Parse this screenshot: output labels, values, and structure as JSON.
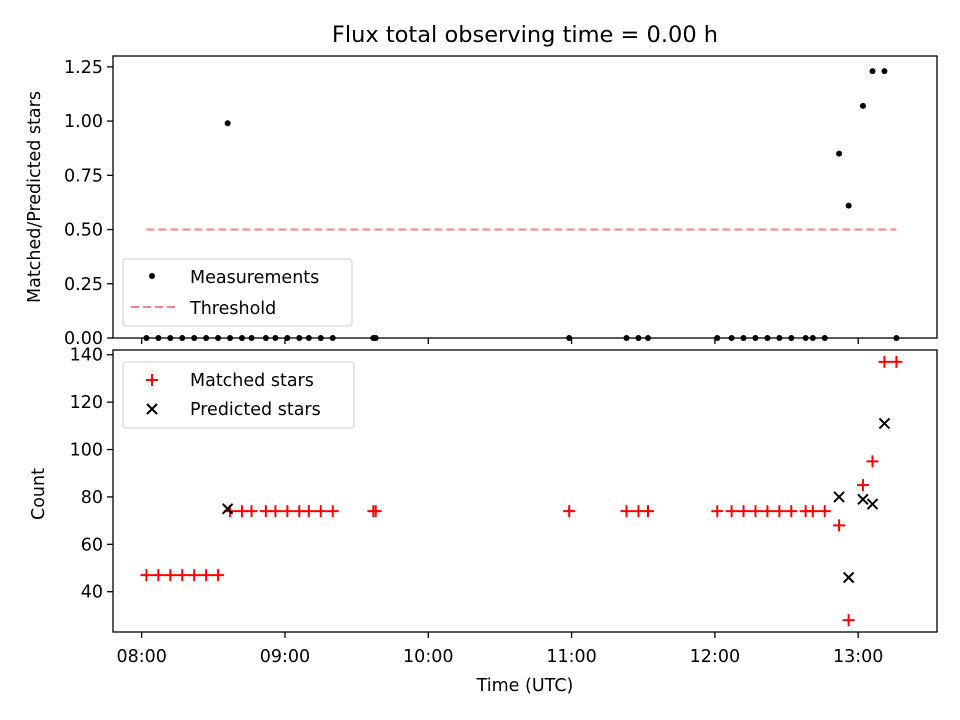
{
  "figure": {
    "title": "Flux total observing time = 0.00 h"
  },
  "chart_data": [
    {
      "type": "scatter",
      "ylabel": "Matched/Predicted stars",
      "xlim": [
        "07:48",
        "13:33"
      ],
      "ylim": [
        0,
        1.3
      ],
      "yticks": [
        "0.00",
        "0.25",
        "0.50",
        "0.75",
        "1.00",
        "1.25"
      ],
      "grid": false,
      "legend_position": "lower-left",
      "series": [
        {
          "name": "Measurements",
          "marker": "dot",
          "color": "#000000",
          "points": [
            [
              "08:02",
              0
            ],
            [
              "08:07",
              0
            ],
            [
              "08:12",
              0
            ],
            [
              "08:17",
              0
            ],
            [
              "08:22",
              0
            ],
            [
              "08:27",
              0
            ],
            [
              "08:32",
              0
            ],
            [
              "08:37",
              0
            ],
            [
              "08:42",
              0
            ],
            [
              "08:46",
              0
            ],
            [
              "08:52",
              0
            ],
            [
              "08:56",
              0
            ],
            [
              "09:01",
              0
            ],
            [
              "09:06",
              0
            ],
            [
              "09:10",
              0
            ],
            [
              "09:15",
              0
            ],
            [
              "09:20",
              0
            ],
            [
              "09:37",
              0
            ],
            [
              "09:38",
              0
            ],
            [
              "10:59",
              0
            ],
            [
              "11:23",
              0
            ],
            [
              "11:28",
              0
            ],
            [
              "11:32",
              0
            ],
            [
              "12:01",
              0
            ],
            [
              "12:07",
              0
            ],
            [
              "12:12",
              0
            ],
            [
              "12:17",
              0
            ],
            [
              "12:22",
              0
            ],
            [
              "12:27",
              0
            ],
            [
              "12:32",
              0
            ],
            [
              "12:38",
              0
            ],
            [
              "12:41",
              0
            ],
            [
              "12:46",
              0
            ],
            [
              "13:16",
              0
            ],
            [
              "08:36",
              0.99
            ],
            [
              "12:52",
              0.85
            ],
            [
              "12:56",
              0.61
            ],
            [
              "13:02",
              1.07
            ],
            [
              "13:06",
              1.23
            ],
            [
              "13:11",
              1.23
            ]
          ]
        },
        {
          "name": "Threshold",
          "marker": "dashed-line",
          "color": "#ff7f7f",
          "points": [
            [
              "08:02",
              0.5
            ],
            [
              "13:16",
              0.5
            ]
          ]
        }
      ]
    },
    {
      "type": "scatter",
      "xlabel": "Time (UTC)",
      "ylabel": "Count",
      "xlim": [
        "07:48",
        "13:33"
      ],
      "ylim": [
        23,
        142
      ],
      "xticks": [
        "08:00",
        "09:00",
        "10:00",
        "11:00",
        "12:00",
        "13:00"
      ],
      "yticks": [
        "40",
        "60",
        "80",
        "100",
        "120",
        "140"
      ],
      "grid": false,
      "legend_position": "upper-left",
      "series": [
        {
          "name": "Matched stars",
          "marker": "plus",
          "color": "#ff0000",
          "points": [
            [
              "08:02",
              47
            ],
            [
              "08:07",
              47
            ],
            [
              "08:12",
              47
            ],
            [
              "08:17",
              47
            ],
            [
              "08:22",
              47
            ],
            [
              "08:27",
              47
            ],
            [
              "08:32",
              47
            ],
            [
              "08:37",
              74
            ],
            [
              "08:42",
              74
            ],
            [
              "08:46",
              74
            ],
            [
              "08:52",
              74
            ],
            [
              "08:56",
              74
            ],
            [
              "09:01",
              74
            ],
            [
              "09:06",
              74
            ],
            [
              "09:10",
              74
            ],
            [
              "09:15",
              74
            ],
            [
              "09:20",
              74
            ],
            [
              "09:37",
              74
            ],
            [
              "09:38",
              74
            ],
            [
              "10:59",
              74
            ],
            [
              "11:23",
              74
            ],
            [
              "11:28",
              74
            ],
            [
              "11:32",
              74
            ],
            [
              "12:01",
              74
            ],
            [
              "12:07",
              74
            ],
            [
              "12:12",
              74
            ],
            [
              "12:17",
              74
            ],
            [
              "12:22",
              74
            ],
            [
              "12:27",
              74
            ],
            [
              "12:32",
              74
            ],
            [
              "12:38",
              74
            ],
            [
              "12:41",
              74
            ],
            [
              "12:46",
              74
            ],
            [
              "12:52",
              68
            ],
            [
              "12:56",
              28
            ],
            [
              "13:02",
              85
            ],
            [
              "13:06",
              95
            ],
            [
              "13:11",
              137
            ],
            [
              "13:16",
              137
            ]
          ]
        },
        {
          "name": "Predicted stars",
          "marker": "x",
          "color": "#000000",
          "points": [
            [
              "08:36",
              75
            ],
            [
              "12:52",
              80
            ],
            [
              "12:56",
              46
            ],
            [
              "13:02",
              79
            ],
            [
              "13:06",
              77
            ],
            [
              "13:11",
              111
            ]
          ]
        }
      ]
    }
  ]
}
